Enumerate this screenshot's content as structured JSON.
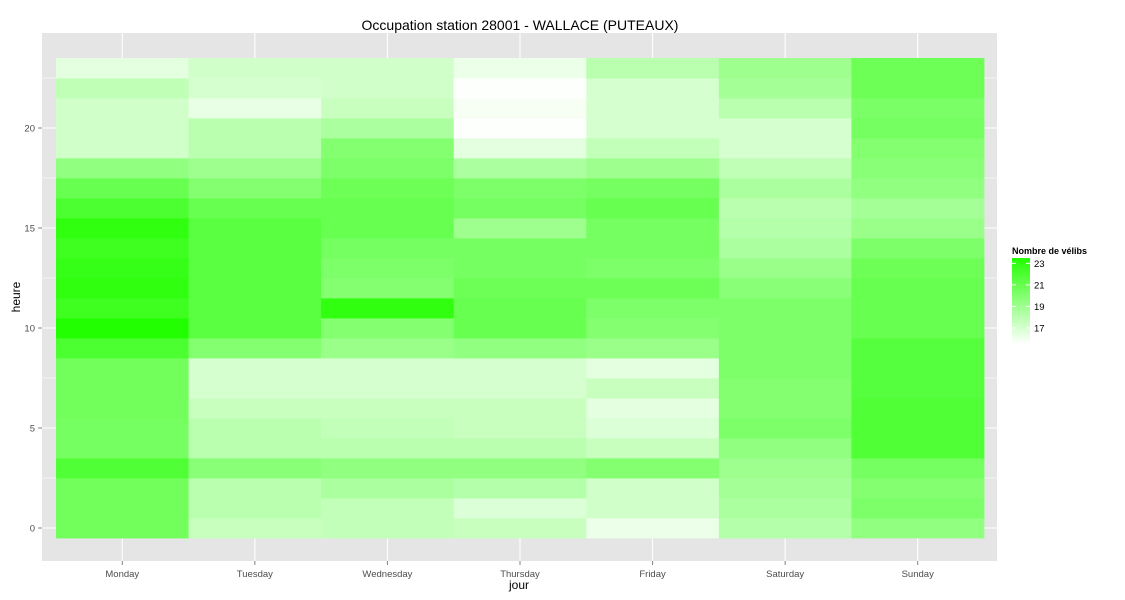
{
  "chart_data": {
    "type": "heatmap",
    "title": "Occupation station 28001 - WALLACE (PUTEAUX)",
    "xlabel": "jour",
    "ylabel": "heure",
    "x_categories": [
      "Monday",
      "Tuesday",
      "Wednesday",
      "Thursday",
      "Friday",
      "Saturday",
      "Sunday"
    ],
    "y_values": [
      0,
      1,
      2,
      3,
      4,
      5,
      6,
      7,
      8,
      9,
      10,
      11,
      12,
      13,
      14,
      15,
      16,
      17,
      18,
      19,
      20,
      21,
      22,
      23
    ],
    "y_ticks": [
      0,
      5,
      10,
      15,
      20
    ],
    "ylim": [
      -0.5,
      23.5
    ],
    "grid": true,
    "colors": {
      "low": "#ffffff",
      "high": "#22ff00",
      "panel": "#e5e5e5",
      "grid": "#ffffff"
    },
    "legend": {
      "title": "Nombre de vélibs",
      "position": "right",
      "breaks": [
        23,
        21,
        19,
        17
      ],
      "range": [
        15.5,
        23.5
      ]
    },
    "values": {
      "Monday": [
        20.6,
        20.6,
        20.6,
        21.8,
        20.5,
        20.5,
        20.6,
        20.6,
        20.6,
        22.0,
        23.5,
        22.5,
        23.0,
        22.8,
        22.5,
        23.0,
        22.0,
        21.0,
        19.5,
        17.2,
        17.2,
        17.2,
        17.8,
        16.5
      ],
      "Tuesday": [
        17.5,
        18.0,
        18.0,
        19.8,
        18.0,
        18.0,
        17.5,
        17.0,
        17.0,
        20.0,
        21.5,
        21.5,
        21.5,
        21.5,
        21.5,
        21.5,
        21.0,
        20.0,
        19.0,
        18.0,
        18.0,
        16.3,
        17.0,
        17.2
      ],
      "Wednesday": [
        17.7,
        17.7,
        18.5,
        19.5,
        18.0,
        17.7,
        17.5,
        17.0,
        17.0,
        19.2,
        20.0,
        23.0,
        20.0,
        20.2,
        20.5,
        21.0,
        21.0,
        20.8,
        20.2,
        20.0,
        18.5,
        17.5,
        17.2,
        17.2
      ],
      "Thursday": [
        17.5,
        16.8,
        18.2,
        19.5,
        18.0,
        17.5,
        17.5,
        17.0,
        17.0,
        19.5,
        21.0,
        21.0,
        20.8,
        20.5,
        20.5,
        19.0,
        20.5,
        20.2,
        18.5,
        16.5,
        15.6,
        15.8,
        15.6,
        16.2
      ],
      "Friday": [
        16.2,
        17.2,
        17.2,
        20.0,
        17.5,
        16.8,
        16.5,
        17.5,
        16.5,
        19.2,
        20.0,
        20.2,
        20.8,
        20.2,
        20.5,
        20.5,
        21.0,
        20.5,
        19.0,
        17.7,
        17.0,
        17.0,
        17.0,
        18.0
      ],
      "Saturday": [
        18.2,
        18.5,
        18.8,
        19.0,
        19.5,
        20.2,
        20.0,
        20.0,
        20.2,
        20.2,
        20.2,
        20.2,
        19.8,
        19.2,
        18.5,
        18.2,
        18.0,
        18.5,
        17.8,
        17.0,
        17.0,
        18.0,
        18.8,
        19.0
      ],
      "Sunday": [
        19.5,
        20.2,
        20.0,
        20.5,
        21.8,
        21.8,
        21.8,
        21.6,
        21.6,
        21.6,
        21.0,
        21.0,
        21.0,
        20.8,
        20.2,
        19.2,
        18.8,
        19.5,
        19.8,
        20.0,
        20.5,
        20.3,
        20.8,
        20.8
      ]
    }
  }
}
